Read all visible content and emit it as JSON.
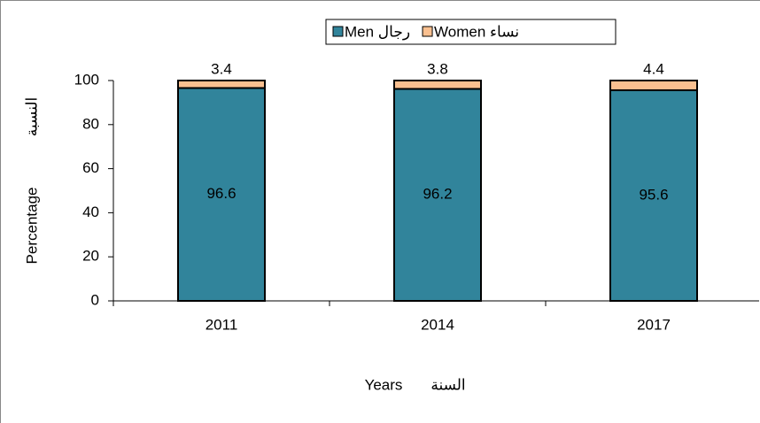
{
  "chart_data": {
    "type": "stacked_bar",
    "categories": [
      "2011",
      "2014",
      "2017"
    ],
    "series": [
      {
        "name": "Men رجال",
        "color": "#31849b",
        "values": [
          96.6,
          96.2,
          95.6
        ]
      },
      {
        "name": "Women نساء",
        "color": "#fac090",
        "values": [
          3.4,
          3.8,
          4.4
        ]
      }
    ],
    "ylim": [
      0,
      100
    ],
    "yticks": [
      0,
      20,
      40,
      60,
      80,
      100
    ],
    "ylabel": [
      "Percentage",
      "النسبة"
    ],
    "xlabel": [
      "Years",
      "السنة"
    ],
    "legend": "top"
  }
}
